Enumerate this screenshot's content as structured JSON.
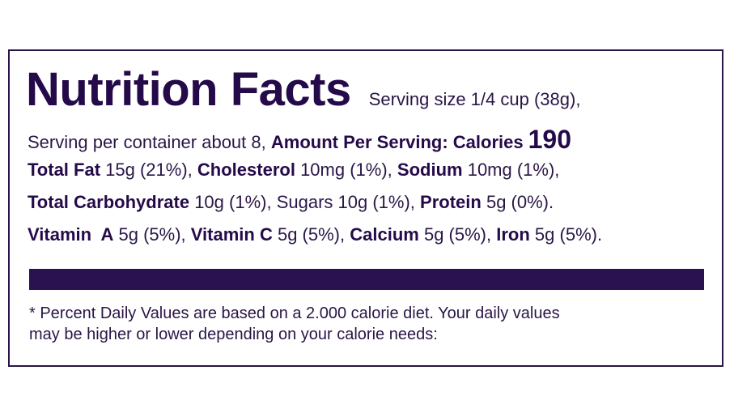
{
  "label": {
    "title": "Nutrition Facts",
    "serving_size": "Serving size 1/4 cup (38g),",
    "servings_per_container": "Serving per container about 8,",
    "amount_per_serving": "Amount Per Serving: Calories",
    "calories": "190",
    "nutrients": {
      "total_fat": {
        "name": "Total Fat",
        "value": "15g (21%),"
      },
      "cholesterol": {
        "name": "Cholesterol",
        "value": "10mg (1%),"
      },
      "sodium": {
        "name": "Sodium",
        "value": "10mg (1%),"
      },
      "total_carbohydrate": {
        "name": "Total Carbohydrate",
        "value": "10g (1%),"
      },
      "sugars": {
        "text": "Sugars 10g (1%),"
      },
      "protein": {
        "name": "Protein",
        "value": "5g (0%)."
      },
      "vitamin_a": {
        "name": "Vitamin  A",
        "value": "5g (5%),"
      },
      "vitamin_c": {
        "name": "Vitamin C",
        "value": "5g (5%),"
      },
      "calcium": {
        "name": "Calcium",
        "value": "5g (5%),"
      },
      "iron": {
        "name": "Iron",
        "value": "5g (5%)."
      }
    },
    "footnote_line1": "* Percent Daily Values are based on a 2.000 calorie diet. Your daily values",
    "footnote_line2": "may be higher or lower depending on your calorie needs:"
  },
  "colors": {
    "text": "#2a1646",
    "heading": "#250a49",
    "bar": "#2a1250"
  }
}
